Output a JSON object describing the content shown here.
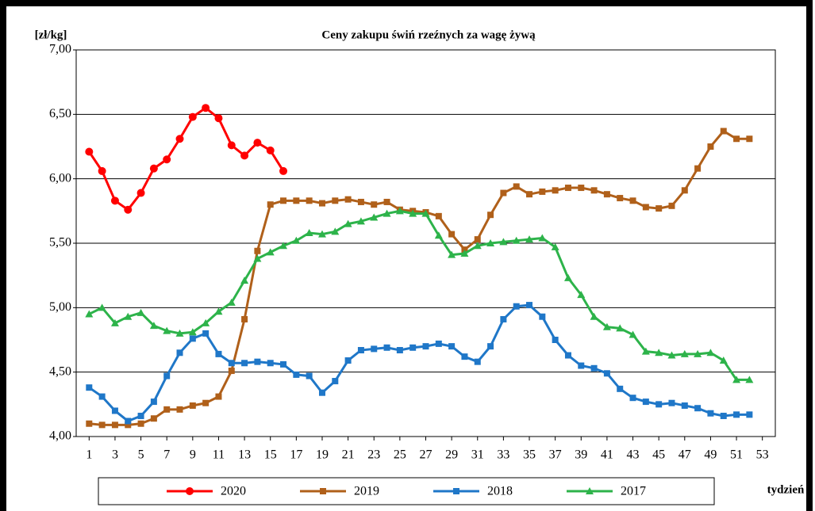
{
  "chart_data": {
    "type": "line",
    "title": "Ceny zakupu świń rzeźnych  za wagę żywą",
    "y_label": "[zł/kg]",
    "x_label": "tydzień",
    "x": [
      1,
      2,
      3,
      4,
      5,
      6,
      7,
      8,
      9,
      10,
      11,
      12,
      13,
      14,
      15,
      16,
      17,
      18,
      19,
      20,
      21,
      22,
      23,
      24,
      25,
      26,
      27,
      28,
      29,
      30,
      31,
      32,
      33,
      34,
      35,
      36,
      37,
      38,
      39,
      40,
      41,
      42,
      43,
      44,
      45,
      46,
      47,
      48,
      49,
      50,
      51,
      52
    ],
    "xlim": [
      0,
      54
    ],
    "xticks": [
      1,
      3,
      5,
      7,
      9,
      11,
      13,
      15,
      17,
      19,
      21,
      23,
      25,
      27,
      29,
      31,
      33,
      35,
      37,
      39,
      41,
      43,
      45,
      47,
      49,
      51,
      53
    ],
    "ylim": [
      4,
      7
    ],
    "yticks": [
      {
        "value": 4,
        "label": "4,00"
      },
      {
        "value": 4.5,
        "label": "4,50"
      },
      {
        "value": 5,
        "label": "5,00"
      },
      {
        "value": 5.5,
        "label": "5,50"
      },
      {
        "value": 6,
        "label": "6,00"
      },
      {
        "value": 6.5,
        "label": "6,50"
      },
      {
        "value": 7,
        "label": "7,00"
      }
    ],
    "grid": true,
    "legend": "bottom",
    "series": [
      {
        "name": "2020",
        "color": "#ff0000",
        "marker": "circle",
        "values": [
          6.21,
          6.06,
          5.83,
          5.76,
          5.89,
          6.08,
          6.15,
          6.31,
          6.48,
          6.55,
          6.47,
          6.26,
          6.18,
          6.28,
          6.22,
          6.06,
          null,
          null,
          null,
          null,
          null,
          null,
          null,
          null,
          null,
          null,
          null,
          null,
          null,
          null,
          null,
          null,
          null,
          null,
          null,
          null,
          null,
          null,
          null,
          null,
          null,
          null,
          null,
          null,
          null,
          null,
          null,
          null,
          null,
          null,
          null,
          null
        ]
      },
      {
        "name": "2019",
        "color": "#b0601a",
        "marker": "square",
        "values": [
          4.1,
          4.09,
          4.09,
          4.09,
          4.1,
          4.14,
          4.21,
          4.21,
          4.24,
          4.26,
          4.31,
          4.51,
          4.91,
          5.44,
          5.8,
          5.83,
          5.83,
          5.83,
          5.81,
          5.83,
          5.84,
          5.82,
          5.8,
          5.82,
          5.76,
          5.75,
          5.74,
          5.71,
          5.57,
          5.45,
          5.53,
          5.72,
          5.89,
          5.94,
          5.88,
          5.9,
          5.91,
          5.93,
          5.93,
          5.91,
          5.88,
          5.85,
          5.83,
          5.78,
          5.77,
          5.79,
          5.91,
          6.08,
          6.25,
          6.37,
          6.31,
          6.31
        ]
      },
      {
        "name": "2018",
        "color": "#1f77c8",
        "marker": "square",
        "values": [
          4.38,
          4.31,
          4.2,
          4.12,
          4.16,
          4.27,
          4.47,
          4.65,
          4.76,
          4.8,
          4.64,
          4.57,
          4.57,
          4.58,
          4.57,
          4.56,
          4.48,
          4.47,
          4.34,
          4.43,
          4.59,
          4.67,
          4.68,
          4.69,
          4.67,
          4.69,
          4.7,
          4.72,
          4.7,
          4.62,
          4.58,
          4.7,
          4.91,
          5.01,
          5.02,
          4.93,
          4.75,
          4.63,
          4.55,
          4.53,
          4.49,
          4.37,
          4.3,
          4.27,
          4.25,
          4.26,
          4.24,
          4.22,
          4.18,
          4.16,
          4.17,
          4.17
        ]
      },
      {
        "name": "2017",
        "color": "#2db34a",
        "marker": "triangle",
        "values": [
          4.95,
          5.0,
          4.88,
          4.93,
          4.96,
          4.86,
          4.82,
          4.8,
          4.81,
          4.88,
          4.97,
          5.04,
          5.21,
          5.38,
          5.43,
          5.48,
          5.52,
          5.58,
          5.57,
          5.59,
          5.65,
          5.67,
          5.7,
          5.73,
          5.75,
          5.73,
          5.73,
          5.56,
          5.41,
          5.42,
          5.48,
          5.5,
          5.51,
          5.52,
          5.53,
          5.54,
          5.47,
          5.23,
          5.1,
          4.93,
          4.85,
          4.84,
          4.79,
          4.66,
          4.65,
          4.63,
          4.64,
          4.64,
          4.65,
          4.59,
          4.44,
          4.44
        ]
      }
    ]
  }
}
